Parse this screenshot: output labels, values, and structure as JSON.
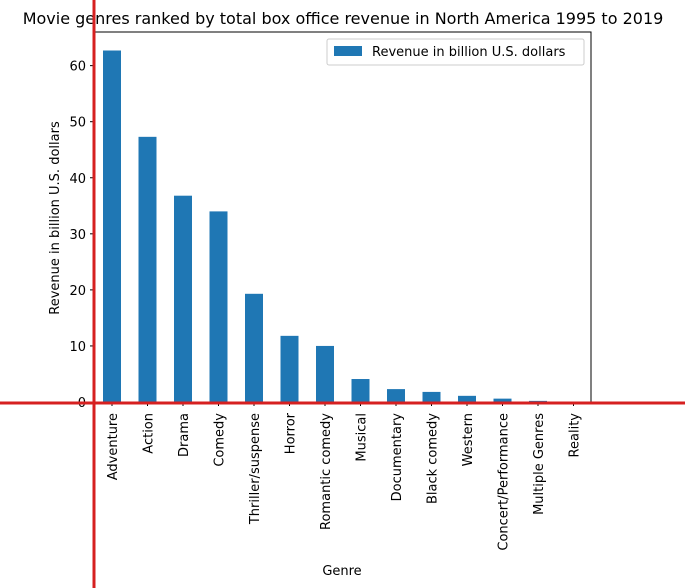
{
  "chart_data": {
    "type": "bar",
    "title": "Movie genres ranked by total box office revenue in North America 1995 to 2019",
    "xlabel": "Genre",
    "ylabel": "Revenue in billion U.S. dollars",
    "categories": [
      "Adventure",
      "Action",
      "Drama",
      "Comedy",
      "Thriller/suspense",
      "Horror",
      "Romantic comedy",
      "Musical",
      "Documentary",
      "Black comedy",
      "Western",
      "Concert/Performance",
      "Multiple Genres",
      "Reality"
    ],
    "series": [
      {
        "name": "Revenue in billion U.S. dollars",
        "values": [
          62.7,
          47.3,
          36.8,
          34.0,
          19.3,
          11.8,
          10.0,
          4.1,
          2.3,
          1.8,
          1.1,
          0.6,
          0.2,
          0.0
        ],
        "color": "#1f77b4"
      }
    ],
    "ylim": [
      0,
      66
    ],
    "yticks": [
      0,
      10,
      20,
      30,
      40,
      50,
      60
    ],
    "grid": false,
    "legend_position": "top-right"
  },
  "overlay_lines": {
    "color": "#d62020"
  }
}
